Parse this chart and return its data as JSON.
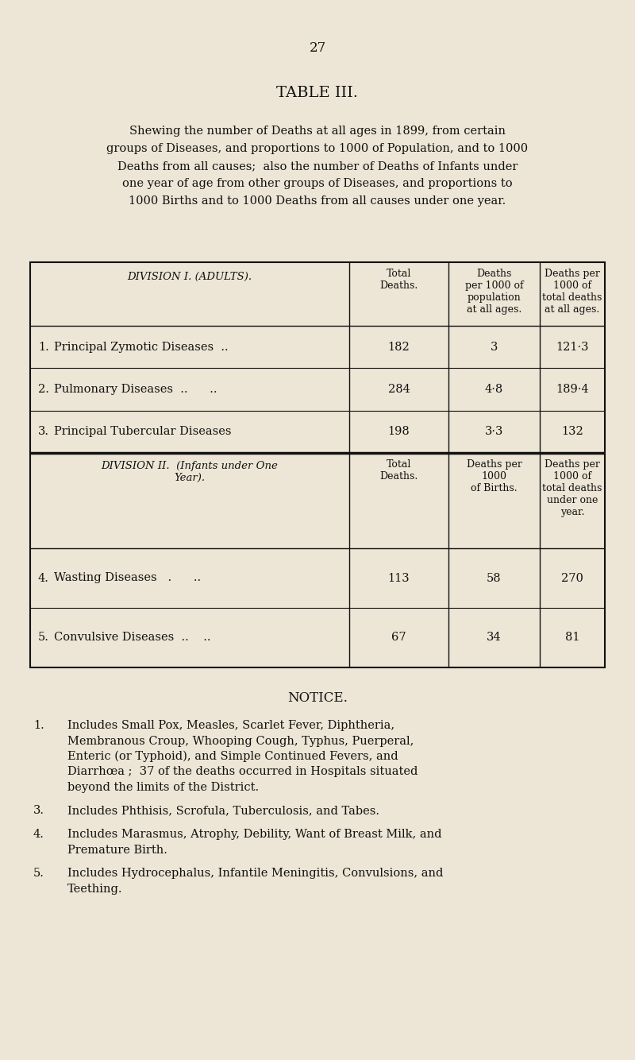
{
  "page_number": "27",
  "title": "TABLE III.",
  "subtitle_lines": [
    "Shewing the number of Deaths at all ages in 1899, from certain",
    "groups of Diseases, and proportions to 1000 of Population, and to 1000",
    "Deaths from all causes;  also the number of Deaths of Infants under",
    "one year of age from other groups of Diseases, and proportions to",
    "1000 Births and to 1000 Deaths from all causes under one year."
  ],
  "bg_color": "#ede5d5",
  "div1_header": "DIVISION I. (ADULTS).",
  "div1_col1": "Total\nDeaths.",
  "div1_col2": "Deaths\nper 1000 of\npopulation\nat all ages.",
  "div1_col3": "Deaths per\n1000 of\ntotal deaths\nat all ages.",
  "div1_rows": [
    {
      "num": "1.",
      "name": "Principal Zymotic Diseases  ..",
      "val1": "182",
      "val2": "3",
      "val3": "121·3"
    },
    {
      "num": "2.",
      "name": "Pulmonary Diseases  ..      ..",
      "val1": "284",
      "val2": "4·8",
      "val3": "189·4"
    },
    {
      "num": "3.",
      "name": "Principal Tubercular Diseases",
      "val1": "198",
      "val2": "3·3",
      "val3": "132"
    }
  ],
  "div2_header": "DIVISION II.  (Infants under One\nYear).",
  "div2_col1": "Total\nDeaths.",
  "div2_col2": "Deaths per\n1000\nof Births.",
  "div2_col3": "Deaths per\n1000 of\ntotal deaths\nunder one\nyear.",
  "div2_rows": [
    {
      "num": "4.",
      "name": "Wasting Diseases   .      ..",
      "val1": "113",
      "val2": "58",
      "val3": "270"
    },
    {
      "num": "5.",
      "name": "Convulsive Diseases  ..    ..",
      "val1": "67",
      "val2": "34",
      "val3": "81"
    }
  ],
  "notice_title": "NOTICE.",
  "notice_items": [
    [
      "1.",
      "Includes Small Pox, Measles, Scarlet Fever, Diphtheria,",
      "Membranous Croup, Whooping Cough, Typhus, Puerperal,",
      "Enteric (or Typhoid), and Simple Continued Fevers, and",
      "Diarrhœa ;  37 of the deaths occurred in Hospitals situated",
      "beyond the limits of the District."
    ],
    [
      "3.",
      "Includes Phthisis, Scrofula, Tuberculosis, and Tabes."
    ],
    [
      "4.",
      "Includes Marasmus, Atrophy, Debility, Want of Breast Milk, and",
      "Premature Birth."
    ],
    [
      "5.",
      "Includes Hydrocephalus, Infantile Meningitis, Convulsions, and",
      "Teething."
    ]
  ],
  "text_color": "#111111",
  "line_color": "#111111"
}
